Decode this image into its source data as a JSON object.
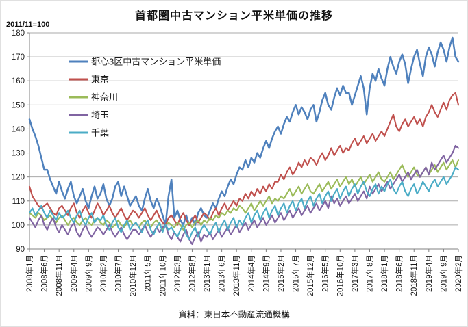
{
  "page": {
    "background": "#ffffff"
  },
  "chart_data": {
    "type": "line",
    "title": "首都圏中古マンション平米単価の推移",
    "index_note": "2011/11=100",
    "source": "資料：東日本不動産流通機構",
    "ylabel": "",
    "xlabel": "",
    "ylim": [
      90,
      180
    ],
    "y_tick_step": 10,
    "grid": true,
    "legend_position": "upper-left-inside",
    "axis_color": "#808080",
    "grid_color": "#aaaaaa",
    "x_start": "2008年1月",
    "x_end": "2020年2月",
    "x_frequency": "monthly",
    "x_tick_every": 5,
    "x_tick_labels": [
      "2008年1月",
      "2008年6月",
      "2008年11月",
      "2009年4月",
      "2009年9月",
      "2010年2月",
      "2010年7月",
      "2010年12月",
      "2011年5月",
      "2011年10月",
      "2012年3月",
      "2012年8月",
      "2013年1月",
      "2013年6月",
      "2013年11月",
      "2014年4月",
      "2014年9月",
      "2015年2月",
      "2015年7月",
      "2015年12月",
      "2016年5月",
      "2016年10月",
      "2017年3月",
      "2017年8月",
      "2018年1月",
      "2018年6月",
      "2018年11月",
      "2019年4月",
      "2019年9月",
      "2020年2月"
    ],
    "series": [
      {
        "key": "toshin3ku",
        "name": "都心3区中古マンション平米単価",
        "color": "#4F81BD",
        "values": [
          144,
          140,
          137,
          133,
          128,
          123,
          123,
          119,
          116,
          113,
          118,
          114,
          111,
          115,
          118,
          112,
          109,
          112,
          115,
          110,
          107,
          112,
          116,
          111,
          113,
          117,
          111,
          108,
          111,
          116,
          118,
          112,
          116,
          112,
          108,
          110,
          112,
          108,
          106,
          111,
          115,
          110,
          107,
          111,
          108,
          104,
          100,
          112,
          119,
          103,
          106,
          102,
          100,
          104,
          100,
          103,
          100,
          105,
          107,
          104,
          103,
          106,
          109,
          107,
          111,
          114,
          112,
          116,
          119,
          117,
          121,
          124,
          123,
          127,
          124,
          128,
          126,
          130,
          128,
          132,
          135,
          132,
          136,
          139,
          141,
          138,
          142,
          145,
          143,
          147,
          150,
          146,
          149,
          147,
          144,
          148,
          150,
          143,
          147,
          152,
          155,
          150,
          148,
          153,
          157,
          154,
          158,
          155,
          155,
          150,
          154,
          158,
          162,
          157,
          146,
          157,
          163,
          160,
          165,
          161,
          158,
          165,
          170,
          166,
          163,
          168,
          171,
          167,
          159,
          165,
          170,
          173,
          167,
          162,
          170,
          174,
          171,
          166,
          172,
          176,
          173,
          168,
          174,
          178,
          170,
          168
        ]
      },
      {
        "key": "tokyo",
        "name": "東京",
        "color": "#C0504D",
        "values": [
          116,
          112,
          110,
          108,
          107,
          108,
          109,
          107,
          105,
          104,
          107,
          108,
          106,
          104,
          107,
          109,
          105,
          103,
          106,
          108,
          105,
          103,
          106,
          109,
          107,
          104,
          106,
          108,
          105,
          103,
          105,
          107,
          104,
          102,
          104,
          106,
          105,
          103,
          105,
          107,
          104,
          102,
          104,
          106,
          103,
          101,
          100,
          103,
          104,
          102,
          100,
          103,
          105,
          102,
          100,
          102,
          104,
          101,
          103,
          105,
          104,
          102,
          105,
          107,
          104,
          107,
          109,
          106,
          108,
          110,
          108,
          111,
          110,
          113,
          111,
          114,
          112,
          115,
          113,
          116,
          114,
          117,
          115,
          118,
          118,
          121,
          119,
          122,
          124,
          121,
          123,
          126,
          124,
          127,
          125,
          128,
          127,
          125,
          128,
          130,
          127,
          129,
          132,
          129,
          131,
          133,
          130,
          132,
          131,
          134,
          136,
          133,
          135,
          137,
          134,
          136,
          138,
          135,
          137,
          139,
          137,
          140,
          143,
          146,
          141,
          139,
          142,
          144,
          141,
          143,
          145,
          142,
          144,
          141,
          145,
          147,
          150,
          147,
          145,
          148,
          151,
          148,
          152,
          154,
          155,
          150
        ]
      },
      {
        "key": "kanagawa",
        "name": "神奈川",
        "color": "#9BBB59",
        "values": [
          105,
          104,
          103,
          105,
          104,
          102,
          103,
          104,
          102,
          101,
          103,
          104,
          102,
          100,
          102,
          103,
          101,
          100,
          102,
          103,
          101,
          100,
          102,
          103,
          101,
          100,
          102,
          101,
          99,
          100,
          102,
          100,
          99,
          101,
          102,
          100,
          101,
          99,
          101,
          102,
          100,
          99,
          101,
          102,
          100,
          98,
          100,
          101,
          100,
          99,
          101,
          100,
          98,
          100,
          101,
          99,
          101,
          102,
          100,
          102,
          101,
          103,
          102,
          104,
          103,
          105,
          104,
          106,
          105,
          107,
          106,
          108,
          107,
          105,
          107,
          109,
          106,
          108,
          110,
          108,
          110,
          112,
          109,
          111,
          110,
          112,
          111,
          113,
          115,
          112,
          114,
          116,
          113,
          115,
          117,
          114,
          113,
          115,
          117,
          114,
          116,
          118,
          115,
          117,
          119,
          116,
          118,
          120,
          117,
          119,
          116,
          118,
          120,
          117,
          119,
          121,
          118,
          120,
          122,
          119,
          118,
          120,
          122,
          119,
          121,
          123,
          125,
          122,
          120,
          122,
          124,
          121,
          120,
          122,
          124,
          121,
          123,
          125,
          122,
          124,
          126,
          123,
          125,
          127,
          124,
          127
        ]
      },
      {
        "key": "saitama",
        "name": "埼玉",
        "color": "#8064A2",
        "values": [
          103,
          101,
          99,
          102,
          104,
          100,
          98,
          101,
          103,
          99,
          97,
          100,
          98,
          96,
          99,
          101,
          97,
          95,
          98,
          100,
          97,
          95,
          97,
          99,
          98,
          96,
          98,
          100,
          97,
          95,
          97,
          99,
          96,
          94,
          96,
          98,
          98,
          96,
          98,
          100,
          97,
          95,
          97,
          99,
          97,
          99,
          100,
          96,
          94,
          97,
          95,
          93,
          96,
          98,
          94,
          92,
          95,
          97,
          93,
          96,
          95,
          97,
          94,
          96,
          98,
          95,
          97,
          99,
          96,
          98,
          100,
          97,
          99,
          101,
          98,
          100,
          102,
          99,
          101,
          103,
          100,
          102,
          104,
          101,
          103,
          105,
          102,
          104,
          106,
          103,
          105,
          107,
          104,
          106,
          108,
          105,
          107,
          109,
          106,
          108,
          110,
          107,
          112,
          109,
          111,
          108,
          110,
          112,
          109,
          111,
          113,
          110,
          112,
          114,
          111,
          116,
          113,
          115,
          117,
          114,
          116,
          118,
          115,
          117,
          119,
          121,
          118,
          120,
          122,
          119,
          121,
          123,
          120,
          122,
          124,
          121,
          126,
          123,
          125,
          127,
          129,
          126,
          128,
          130,
          133,
          132
        ]
      },
      {
        "key": "chiba",
        "name": "千葉",
        "color": "#4BACC6",
        "values": [
          105,
          107,
          104,
          106,
          108,
          105,
          103,
          106,
          104,
          102,
          105,
          103,
          104,
          106,
          103,
          101,
          104,
          106,
          102,
          100,
          103,
          105,
          101,
          103,
          102,
          104,
          100,
          98,
          101,
          103,
          99,
          97,
          100,
          102,
          98,
          100,
          101,
          99,
          97,
          100,
          102,
          98,
          96,
          99,
          101,
          97,
          100,
          98,
          99,
          97,
          95,
          98,
          100,
          96,
          94,
          97,
          99,
          95,
          98,
          100,
          98,
          96,
          99,
          101,
          97,
          100,
          102,
          98,
          101,
          103,
          99,
          102,
          100,
          103,
          105,
          101,
          104,
          106,
          102,
          105,
          107,
          103,
          106,
          108,
          104,
          107,
          109,
          105,
          108,
          110,
          106,
          109,
          111,
          107,
          110,
          112,
          108,
          111,
          113,
          109,
          112,
          114,
          110,
          113,
          115,
          111,
          114,
          116,
          112,
          115,
          117,
          113,
          116,
          118,
          114,
          112,
          115,
          117,
          113,
          116,
          114,
          117,
          119,
          115,
          113,
          116,
          118,
          114,
          112,
          115,
          117,
          113,
          115,
          118,
          116,
          114,
          117,
          119,
          116,
          118,
          120,
          117,
          119,
          121,
          124,
          123
        ]
      }
    ]
  }
}
